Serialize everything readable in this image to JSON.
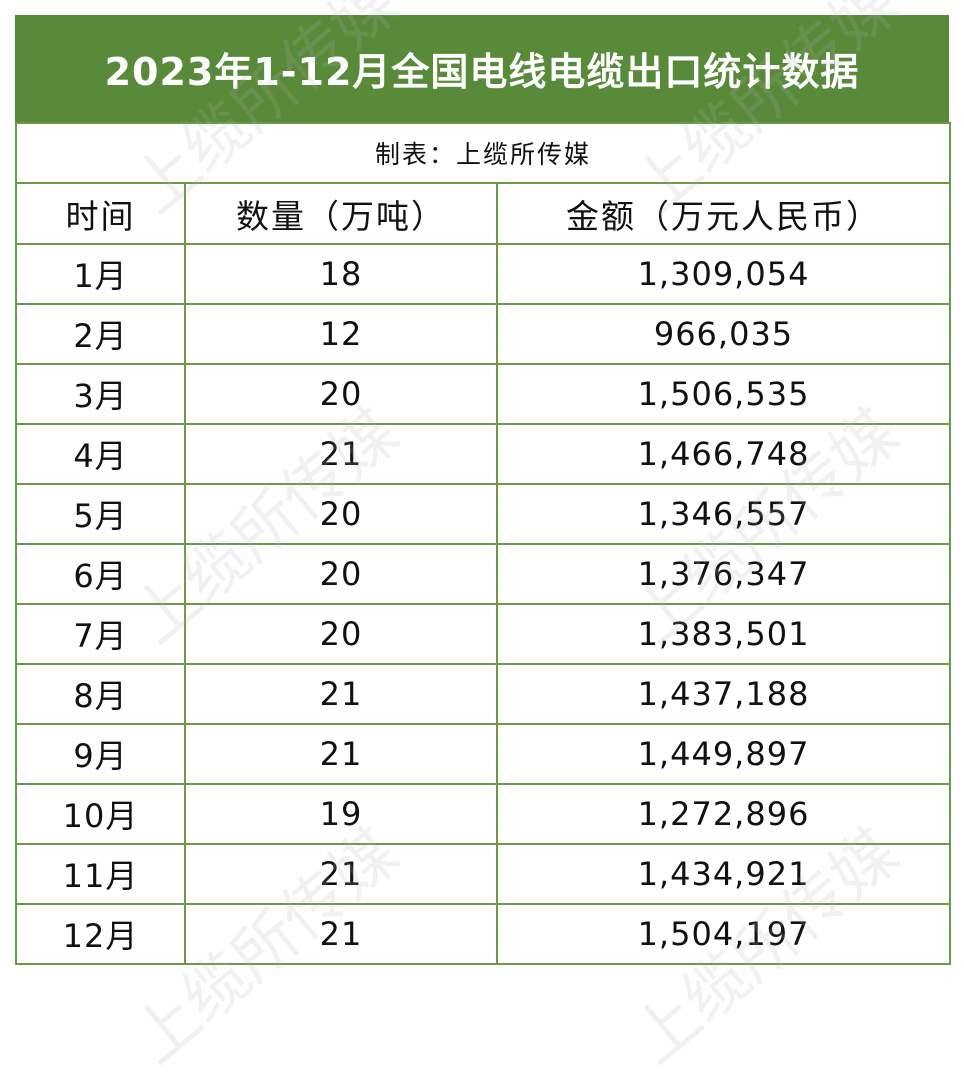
{
  "title": "2023年1-12月全国电线电缆出口统计数据",
  "subtitle": "制表：上缆所传媒",
  "watermark": "上缆所传媒",
  "colors": {
    "header_bg": "#588a3a",
    "grid": "#6b9a4a",
    "title_text": "#ffffff"
  },
  "columns": [
    "时间",
    "数量（万吨）",
    "金额（万元人民币）"
  ],
  "rows": [
    {
      "month": "1月",
      "quantity": "18",
      "amount": "1,309,054"
    },
    {
      "month": "2月",
      "quantity": "12",
      "amount": "966,035"
    },
    {
      "month": "3月",
      "quantity": "20",
      "amount": "1,506,535"
    },
    {
      "month": "4月",
      "quantity": "21",
      "amount": "1,466,748"
    },
    {
      "month": "5月",
      "quantity": "20",
      "amount": "1,346,557"
    },
    {
      "month": "6月",
      "quantity": "20",
      "amount": "1,376,347"
    },
    {
      "month": "7月",
      "quantity": "20",
      "amount": "1,383,501"
    },
    {
      "month": "8月",
      "quantity": "21",
      "amount": "1,437,188"
    },
    {
      "month": "9月",
      "quantity": "21",
      "amount": "1,449,897"
    },
    {
      "month": "10月",
      "quantity": "19",
      "amount": "1,272,896"
    },
    {
      "month": "11月",
      "quantity": "21",
      "amount": "1,434,921"
    },
    {
      "month": "12月",
      "quantity": "21",
      "amount": "1,504,197"
    }
  ]
}
